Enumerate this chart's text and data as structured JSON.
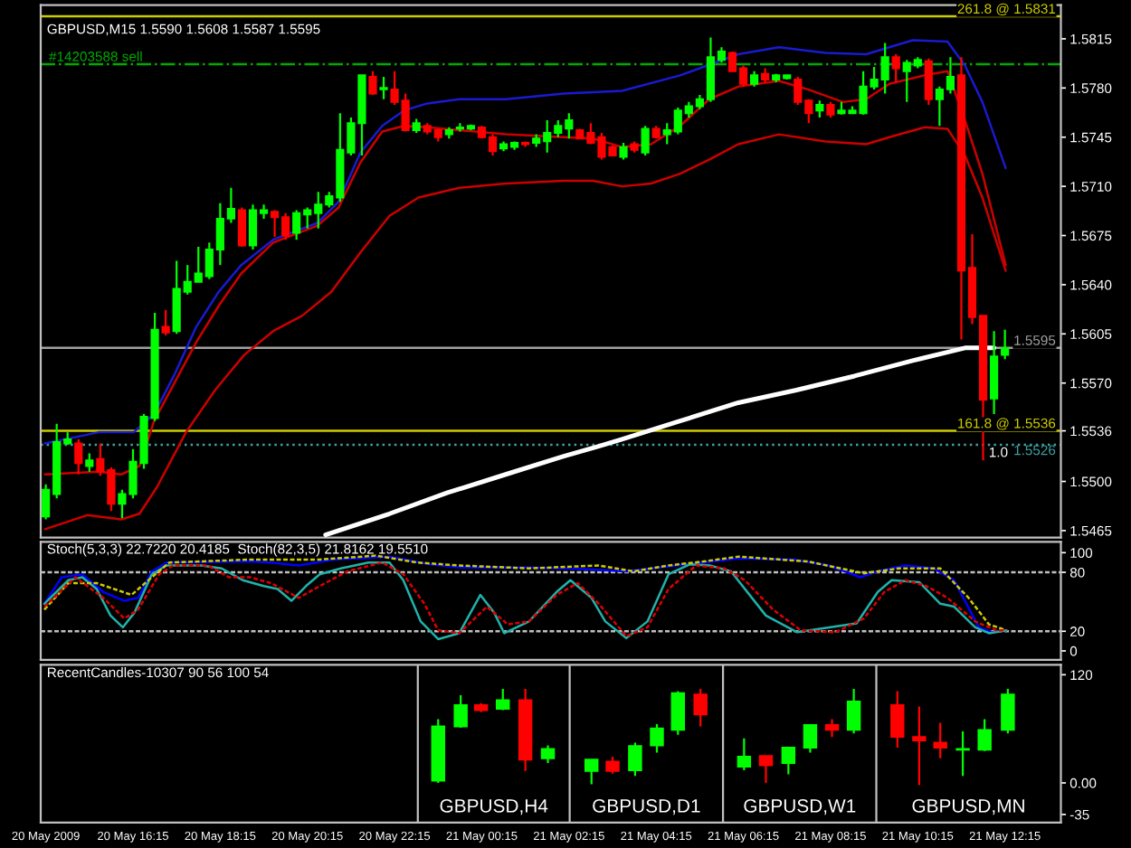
{
  "chart_data": [
    {
      "type": "candlestick",
      "title": "GBPUSD,M15 1.5590 1.5608 1.5587 1.5595",
      "x": [
        "2009-05-20T14:15",
        "2009-05-20T14:30",
        "2009-05-20T14:45",
        "2009-05-20T15:00",
        "2009-05-20T15:15",
        "2009-05-20T15:30",
        "2009-05-20T15:45",
        "2009-05-20T16:00",
        "2009-05-20T16:15",
        "2009-05-20T16:30",
        "2009-05-20T16:45",
        "2009-05-20T17:00",
        "2009-05-20T17:15",
        "2009-05-20T17:30",
        "2009-05-20T17:45",
        "2009-05-20T18:00",
        "2009-05-20T18:15",
        "2009-05-20T18:30",
        "2009-05-20T18:45",
        "2009-05-20T19:00",
        "2009-05-20T19:15",
        "2009-05-20T19:30",
        "2009-05-20T19:45",
        "2009-05-20T20:00",
        "2009-05-20T20:15",
        "2009-05-20T20:30",
        "2009-05-20T20:45",
        "2009-05-20T21:00",
        "2009-05-20T21:15",
        "2009-05-20T21:30",
        "2009-05-20T21:45",
        "2009-05-20T22:00",
        "2009-05-20T22:15",
        "2009-05-20T22:30",
        "2009-05-20T22:45",
        "2009-05-20T23:00",
        "2009-05-20T23:15",
        "2009-05-20T23:30",
        "2009-05-20T23:45",
        "2009-05-21T00:00",
        "2009-05-21T00:15",
        "2009-05-21T00:30",
        "2009-05-21T00:45",
        "2009-05-21T01:00",
        "2009-05-21T01:15",
        "2009-05-21T01:30",
        "2009-05-21T01:45",
        "2009-05-21T02:00",
        "2009-05-21T02:15",
        "2009-05-21T02:30",
        "2009-05-21T02:45",
        "2009-05-21T03:00",
        "2009-05-21T03:15",
        "2009-05-21T03:30",
        "2009-05-21T03:45",
        "2009-05-21T04:00",
        "2009-05-21T04:15",
        "2009-05-21T04:30",
        "2009-05-21T04:45",
        "2009-05-21T05:00",
        "2009-05-21T05:15",
        "2009-05-21T05:30",
        "2009-05-21T05:45",
        "2009-05-21T06:00",
        "2009-05-21T06:15",
        "2009-05-21T06:30",
        "2009-05-21T06:45",
        "2009-05-21T07:00",
        "2009-05-21T07:15",
        "2009-05-21T07:30",
        "2009-05-21T07:45",
        "2009-05-21T08:00",
        "2009-05-21T08:15",
        "2009-05-21T08:30",
        "2009-05-21T08:45",
        "2009-05-21T09:00",
        "2009-05-21T09:15",
        "2009-05-21T09:30",
        "2009-05-21T09:45",
        "2009-05-21T10:00",
        "2009-05-21T10:15",
        "2009-05-21T10:30",
        "2009-05-21T10:45",
        "2009-05-21T11:00",
        "2009-05-21T11:15",
        "2009-05-21T11:30",
        "2009-05-21T11:45",
        "2009-05-21T12:00",
        "2009-05-21T12:15"
      ],
      "ohlc": [
        [
          1.5475,
          1.5498,
          1.5473,
          1.5494
        ],
        [
          1.5491,
          1.5541,
          1.5488,
          1.5528
        ],
        [
          1.5527,
          1.5535,
          1.5526,
          1.553
        ],
        [
          1.5527,
          1.553,
          1.5505,
          1.5513
        ],
        [
          1.5511,
          1.552,
          1.5507,
          1.5515
        ],
        [
          1.5516,
          1.5527,
          1.5504,
          1.5507
        ],
        [
          1.5508,
          1.551,
          1.5479,
          1.5484
        ],
        [
          1.5484,
          1.5494,
          1.5474,
          1.5491
        ],
        [
          1.5491,
          1.5523,
          1.5488,
          1.5514
        ],
        [
          1.5513,
          1.5548,
          1.5509,
          1.5546
        ],
        [
          1.5545,
          1.562,
          1.5543,
          1.5608
        ],
        [
          1.561,
          1.5622,
          1.5604,
          1.5606
        ],
        [
          1.5607,
          1.5657,
          1.5605,
          1.5637
        ],
        [
          1.5635,
          1.5654,
          1.5633,
          1.5642
        ],
        [
          1.5642,
          1.5667,
          1.5642,
          1.5648
        ],
        [
          1.5646,
          1.567,
          1.5644,
          1.5665
        ],
        [
          1.5665,
          1.5698,
          1.5654,
          1.5687
        ],
        [
          1.5687,
          1.5709,
          1.5684,
          1.5694
        ],
        [
          1.5693,
          1.5695,
          1.5667,
          1.5668
        ],
        [
          1.5668,
          1.5697,
          1.5665,
          1.5693
        ],
        [
          1.5691,
          1.5697,
          1.5687,
          1.5693
        ],
        [
          1.5692,
          1.5693,
          1.5674,
          1.5688
        ],
        [
          1.5688,
          1.5691,
          1.5672,
          1.5675
        ],
        [
          1.5677,
          1.5693,
          1.5672,
          1.5691
        ],
        [
          1.569,
          1.5695,
          1.568,
          1.5693
        ],
        [
          1.5691,
          1.5706,
          1.568,
          1.5697
        ],
        [
          1.5697,
          1.5706,
          1.5695,
          1.5703
        ],
        [
          1.5702,
          1.5762,
          1.5699,
          1.5736
        ],
        [
          1.5734,
          1.5759,
          1.5732,
          1.5755
        ],
        [
          1.5755,
          1.5789,
          1.5732,
          1.5789
        ],
        [
          1.5788,
          1.5792,
          1.5775,
          1.5776
        ],
        [
          1.5779,
          1.5788,
          1.5772,
          1.578
        ],
        [
          1.5779,
          1.5792,
          1.5768,
          1.577
        ],
        [
          1.5771,
          1.5776,
          1.5749,
          1.575
        ],
        [
          1.575,
          1.5758,
          1.5748,
          1.5755
        ],
        [
          1.5753,
          1.5755,
          1.5747,
          1.5749
        ],
        [
          1.575,
          1.5751,
          1.5742,
          1.5745
        ],
        [
          1.5747,
          1.5752,
          1.5744,
          1.575
        ],
        [
          1.5751,
          1.5755,
          1.5749,
          1.5752
        ],
        [
          1.5751,
          1.5754,
          1.575,
          1.5753
        ],
        [
          1.5752,
          1.5753,
          1.5744,
          1.5745
        ],
        [
          1.5745,
          1.5747,
          1.5732,
          1.5735
        ],
        [
          1.5737,
          1.5742,
          1.5735,
          1.574
        ],
        [
          1.5738,
          1.5742,
          1.5736,
          1.5741
        ],
        [
          1.5741,
          1.5742,
          1.5738,
          1.574
        ],
        [
          1.5741,
          1.5747,
          1.5738,
          1.5744
        ],
        [
          1.5742,
          1.5757,
          1.5734,
          1.5748
        ],
        [
          1.5748,
          1.5757,
          1.5745,
          1.5753
        ],
        [
          1.5751,
          1.5762,
          1.5744,
          1.5757
        ],
        [
          1.575,
          1.5751,
          1.5744,
          1.5744
        ],
        [
          1.5748,
          1.5755,
          1.574,
          1.5741
        ],
        [
          1.5745,
          1.5748,
          1.5729,
          1.5731
        ],
        [
          1.5738,
          1.5739,
          1.5732,
          1.5732
        ],
        [
          1.5731,
          1.5741,
          1.5729,
          1.5738
        ],
        [
          1.574,
          1.5742,
          1.5734,
          1.5736
        ],
        [
          1.5734,
          1.5753,
          1.5732,
          1.5751
        ],
        [
          1.5751,
          1.5753,
          1.5744,
          1.5745
        ],
        [
          1.5747,
          1.5755,
          1.574,
          1.575
        ],
        [
          1.5749,
          1.5766,
          1.5747,
          1.5764
        ],
        [
          1.5762,
          1.577,
          1.5759,
          1.5767
        ],
        [
          1.5767,
          1.5775,
          1.5765,
          1.5772
        ],
        [
          1.5772,
          1.5816,
          1.577,
          1.5802
        ],
        [
          1.58,
          1.5809,
          1.5798,
          1.5806
        ],
        [
          1.5805,
          1.5806,
          1.5792,
          1.5792
        ],
        [
          1.5794,
          1.5796,
          1.5781,
          1.5783
        ],
        [
          1.5783,
          1.5792,
          1.5781,
          1.5789
        ],
        [
          1.579,
          1.5794,
          1.5784,
          1.5786
        ],
        [
          1.5786,
          1.579,
          1.5784,
          1.5789
        ],
        [
          1.5787,
          1.5789,
          1.5786,
          1.5789
        ],
        [
          1.5786,
          1.5788,
          1.5768,
          1.577
        ],
        [
          1.5771,
          1.5772,
          1.5755,
          1.5762
        ],
        [
          1.5764,
          1.5771,
          1.5759,
          1.5768
        ],
        [
          1.5768,
          1.577,
          1.5759,
          1.5761
        ],
        [
          1.5762,
          1.577,
          1.5761,
          1.5764
        ],
        [
          1.5762,
          1.5767,
          1.5762,
          1.5764
        ],
        [
          1.5762,
          1.5792,
          1.5761,
          1.5781
        ],
        [
          1.5781,
          1.5795,
          1.5779,
          1.5786
        ],
        [
          1.5786,
          1.5812,
          1.5776,
          1.5802
        ],
        [
          1.5802,
          1.5804,
          1.5784,
          1.5794
        ],
        [
          1.5792,
          1.58,
          1.577,
          1.5798
        ],
        [
          1.5796,
          1.5802,
          1.5794,
          1.58
        ],
        [
          1.5799,
          1.5801,
          1.5768,
          1.5772
        ],
        [
          1.5772,
          1.5781,
          1.5753,
          1.5779
        ],
        [
          1.5779,
          1.5802,
          1.5776,
          1.5788
        ],
        [
          1.5789,
          1.5802,
          1.5601,
          1.565
        ],
        [
          1.5652,
          1.5676,
          1.5612,
          1.5617
        ],
        [
          1.5618,
          1.5618,
          1.5515,
          1.5558
        ],
        [
          1.5559,
          1.5607,
          1.5548,
          1.5589
        ],
        [
          1.559,
          1.5608,
          1.5587,
          1.5595
        ]
      ],
      "colors": [
        "#00ff00",
        "#00ff00",
        "#00ff00",
        "#ff0000",
        "#00ff00",
        "#ff0000",
        "#ff0000",
        "#00ff00",
        "#00ff00",
        "#00ff00",
        "#00ff00",
        "#ff0000",
        "#00ff00",
        "#00ff00",
        "#00ff00",
        "#00ff00",
        "#00ff00",
        "#00ff00",
        "#ff0000",
        "#00ff00",
        "#00ff00",
        "#ff0000",
        "#ff0000",
        "#00ff00",
        "#00ff00",
        "#00ff00",
        "#00ff00",
        "#00ff00",
        "#00ff00",
        "#00ff00",
        "#ff0000",
        "#00ff00",
        "#ff0000",
        "#ff0000",
        "#00ff00",
        "#ff0000",
        "#ff0000",
        "#00ff00",
        "#00ff00",
        "#00ff00",
        "#ff0000",
        "#ff0000",
        "#00ff00",
        "#00ff00",
        "#ff0000",
        "#00ff00",
        "#00ff00",
        "#00ff00",
        "#00ff00",
        "#ff0000",
        "#ff0000",
        "#ff0000",
        "#ff0000",
        "#00ff00",
        "#ff0000",
        "#00ff00",
        "#ff0000",
        "#00ff00",
        "#00ff00",
        "#00ff00",
        "#00ff00",
        "#00ff00",
        "#00ff00",
        "#ff0000",
        "#ff0000",
        "#00ff00",
        "#ff0000",
        "#00ff00",
        "#00ff00",
        "#ff0000",
        "#ff0000",
        "#00ff00",
        "#ff0000",
        "#00ff00",
        "#00ff00",
        "#00ff00",
        "#00ff00",
        "#00ff00",
        "#ff0000",
        "#00ff00",
        "#00ff00",
        "#ff0000",
        "#00ff00",
        "#00ff00",
        "#ff0000",
        "#ff0000",
        "#ff0000",
        "#00ff00",
        "#00ff00"
      ],
      "series": [
        {
          "type": "line",
          "color": "#1a1ad0",
          "x": [
            "2009-05-20T14:14",
            "2009-05-20T15:28",
            "2009-05-20T16:16",
            "2009-05-20T16:44",
            "2009-05-20T17:13",
            "2009-05-20T17:42",
            "2009-05-20T18:13",
            "2009-05-20T18:44",
            "2009-05-20T19:28",
            "2009-05-20T19:58",
            "2009-05-20T20:29",
            "2009-05-20T20:58",
            "2009-05-20T21:28",
            "2009-05-20T21:58",
            "2009-05-20T22:28",
            "2009-05-20T23:00",
            "2009-05-20T23:44",
            "2009-05-21T00:48",
            "2009-05-21T02:08",
            "2009-05-21T03:28",
            "2009-05-21T04:48",
            "2009-05-21T06:08",
            "2009-05-21T07:04",
            "2009-05-21T08:08",
            "2009-05-21T09:04",
            "2009-05-21T10:08",
            "2009-05-21T10:56",
            "2009-05-21T11:20",
            "2009-05-21T11:44",
            "2009-05-21T12:16"
          ],
          "values": [
            1.5527,
            1.5535,
            1.5535,
            1.5548,
            1.5577,
            1.561,
            1.5635,
            1.5654,
            1.5672,
            1.5678,
            1.5684,
            1.5699,
            1.5734,
            1.5753,
            1.5764,
            1.5769,
            1.5772,
            1.5772,
            1.5776,
            1.5778,
            1.5789,
            1.5804,
            1.5809,
            1.5805,
            1.5804,
            1.5814,
            1.5813,
            1.5796,
            1.577,
            1.5723
          ]
        },
        {
          "type": "line",
          "color": "#cc0000",
          "x": [
            "2009-05-20T14:14",
            "2009-05-20T15:28",
            "2009-05-20T15:59",
            "2009-05-20T16:24",
            "2009-05-20T16:44",
            "2009-05-20T17:13",
            "2009-05-20T17:42",
            "2009-05-20T18:13",
            "2009-05-20T18:44",
            "2009-05-20T19:28",
            "2009-05-20T19:58",
            "2009-05-20T20:29",
            "2009-05-20T20:58",
            "2009-05-20T21:28",
            "2009-05-20T21:58",
            "2009-05-20T22:28",
            "2009-05-20T23:00",
            "2009-05-20T23:44",
            "2009-05-21T00:48",
            "2009-05-21T02:08",
            "2009-05-21T02:48",
            "2009-05-21T03:28",
            "2009-05-21T04:08",
            "2009-05-21T04:48",
            "2009-05-21T05:28",
            "2009-05-21T06:08",
            "2009-05-21T07:04",
            "2009-05-21T07:44",
            "2009-05-21T08:32",
            "2009-05-21T09:04",
            "2009-05-21T09:36",
            "2009-05-21T10:24",
            "2009-05-21T10:56",
            "2009-05-21T11:20",
            "2009-05-21T11:44",
            "2009-05-21T12:16"
          ],
          "values": [
            1.5505,
            1.5507,
            1.5505,
            1.5511,
            1.5543,
            1.5571,
            1.5599,
            1.5625,
            1.5648,
            1.567,
            1.5676,
            1.5682,
            1.5695,
            1.5727,
            1.5749,
            1.5753,
            1.5752,
            1.575,
            1.5747,
            1.5745,
            1.5744,
            1.5738,
            1.574,
            1.5753,
            1.5772,
            1.5781,
            1.5785,
            1.5779,
            1.577,
            1.5772,
            1.5783,
            1.5789,
            1.5792,
            1.5757,
            1.5719,
            1.5654
          ]
        },
        {
          "type": "line",
          "color": "#cc0000",
          "x": [
            "2009-05-20T14:14",
            "2009-05-20T15:12",
            "2009-05-20T15:59",
            "2009-05-20T16:24",
            "2009-05-20T16:48",
            "2009-05-20T17:28",
            "2009-05-20T18:08",
            "2009-05-20T18:48",
            "2009-05-20T19:28",
            "2009-05-20T20:08",
            "2009-05-20T20:48",
            "2009-05-20T21:28",
            "2009-05-20T22:08",
            "2009-05-20T22:48",
            "2009-05-20T23:44",
            "2009-05-21T00:48",
            "2009-05-21T02:08",
            "2009-05-21T02:48",
            "2009-05-21T03:28",
            "2009-05-21T04:08",
            "2009-05-21T04:48",
            "2009-05-21T05:28",
            "2009-05-21T06:08",
            "2009-05-21T07:04",
            "2009-05-21T08:08",
            "2009-05-21T09:04",
            "2009-05-21T09:36",
            "2009-05-21T10:24",
            "2009-05-21T10:56",
            "2009-05-21T11:20",
            "2009-05-21T11:44",
            "2009-05-21T12:16"
          ],
          "values": [
            1.5466,
            1.5476,
            1.5473,
            1.5477,
            1.5496,
            1.5535,
            1.5565,
            1.559,
            1.5607,
            1.5618,
            1.5635,
            1.5663,
            1.5689,
            1.5702,
            1.5709,
            1.5712,
            1.5714,
            1.5714,
            1.571,
            1.5712,
            1.5719,
            1.5729,
            1.574,
            1.5747,
            1.5742,
            1.574,
            1.5745,
            1.5752,
            1.5751,
            1.5732,
            1.5702,
            1.565
          ]
        },
        {
          "type": "line",
          "color": "#ffffff",
          "x": [
            "2009-05-20T20:40",
            "2009-05-20T22:08",
            "2009-05-20T23:28",
            "2009-05-21T00:48",
            "2009-05-21T02:08",
            "2009-05-21T02:56",
            "2009-05-21T03:28",
            "2009-05-21T04:48",
            "2009-05-21T06:08",
            "2009-05-21T07:28",
            "2009-05-21T08:48",
            "2009-05-21T10:08",
            "2009-05-21T11:20",
            "2009-05-21T12:00"
          ],
          "values": [
            1.5462,
            1.5477,
            1.5492,
            1.5505,
            1.5518,
            1.5525,
            1.553,
            1.5543,
            1.5556,
            1.5565,
            1.5575,
            1.5586,
            1.5595,
            1.5595
          ]
        }
      ],
      "xlim": [
        "2009-05-20T14:08",
        "2009-05-21T13:32"
      ],
      "ylim": [
        1.546,
        1.5839
      ],
      "yticks": [
        1.5465,
        {
          "value": 1.55,
          "label": "1.5500"
        },
        1.5536,
        {
          "value": 1.557,
          "label": "1.5570"
        },
        1.5605,
        {
          "value": 1.564,
          "label": "1.5640"
        },
        1.5675,
        {
          "value": 1.571,
          "label": "1.5710"
        },
        1.5745,
        {
          "value": 1.578,
          "label": "1.5780"
        },
        1.5815
      ],
      "tick_labels": "y",
      "ref_lines": [
        {
          "axis": "y",
          "value": 1.5831,
          "label": "261.8 @ 1.5831",
          "color": "#cccc00",
          "line_style": "solid"
        },
        {
          "axis": "y",
          "value": 1.5797,
          "label": "#14203588 sell",
          "color": "#00aa00",
          "line_style": "dashdot"
        },
        {
          "axis": "y",
          "value": 1.5595,
          "label": "1.5595",
          "color": "#a0a0a0",
          "line_style": "solid"
        },
        {
          "axis": "y",
          "value": 1.5536,
          "label": "161.8 @ 1.5536",
          "color": "#cccc00",
          "line_style": "solid"
        },
        {
          "axis": "y",
          "value": 1.5526,
          "label": "1.5526",
          "color": "#40a0a0",
          "line_style": "dotted"
        }
      ],
      "annotations": [
        {
          "text": "1.0",
          "x": "2009-05-21T12:06",
          "y": 1.552
        }
      ]
    },
    {
      "type": "line",
      "title": "Stoch(5,3,3) 22.7220 20.4185  Stoch(82,3,5) 21.8162 19.5510",
      "series": [
        {
          "type": "line",
          "color": "#20b2aa",
          "line_style": "solid",
          "x": [
            "2009-05-20T14:13",
            "2009-05-20T14:46",
            "2009-05-20T15:05",
            "2009-05-20T15:25",
            "2009-05-20T15:44",
            "2009-05-20T16:01",
            "2009-05-20T16:17",
            "2009-05-20T16:41",
            "2009-05-20T17:01",
            "2009-05-20T17:49",
            "2009-05-20T18:17",
            "2009-05-20T18:46",
            "2009-05-20T19:15",
            "2009-05-20T19:34",
            "2009-05-20T19:53",
            "2009-05-20T20:13",
            "2009-05-20T20:32",
            "2009-05-20T21:01",
            "2009-05-20T21:39",
            "2009-05-20T22:08",
            "2009-05-20T22:27",
            "2009-05-20T22:51",
            "2009-05-20T23:15",
            "2009-05-20T23:44",
            "2009-05-21T00:13",
            "2009-05-21T00:32",
            "2009-05-21T00:46",
            "2009-05-21T01:20",
            "2009-05-21T01:58",
            "2009-05-21T02:17",
            "2009-05-21T02:46",
            "2009-05-21T03:05",
            "2009-05-21T03:34",
            "2009-05-21T04:03",
            "2009-05-21T04:32",
            "2009-05-21T05:01",
            "2009-05-21T05:29",
            "2009-05-21T05:58",
            "2009-05-21T06:46",
            "2009-05-21T07:29",
            "2009-05-21T08:13",
            "2009-05-21T08:51",
            "2009-05-21T09:20",
            "2009-05-21T09:39",
            "2009-05-21T10:17",
            "2009-05-21T10:46",
            "2009-05-21T11:05",
            "2009-05-21T11:34",
            "2009-05-21T11:53",
            "2009-05-21T12:17"
          ],
          "values": [
            48,
            72,
            75,
            63,
            36,
            24,
            39,
            78,
            87,
            87,
            84,
            72,
            66,
            63,
            51,
            66,
            78,
            84,
            90,
            90,
            72,
            30,
            12,
            18,
            57,
            39,
            18,
            30,
            60,
            72,
            54,
            30,
            13,
            30,
            78,
            88,
            87,
            81,
            36,
            19,
            24,
            28,
            60,
            72,
            70,
            48,
            45,
            24,
            18,
            21
          ]
        },
        {
          "type": "line",
          "color": "#dd0000",
          "line_style": "dashed",
          "x": [
            "2009-05-20T14:13",
            "2009-05-20T14:56",
            "2009-05-20T15:34",
            "2009-05-20T16:03",
            "2009-05-20T16:22",
            "2009-05-20T16:51",
            "2009-05-20T17:10",
            "2009-05-20T17:58",
            "2009-05-20T18:27",
            "2009-05-20T18:56",
            "2009-05-20T19:25",
            "2009-05-20T20:03",
            "2009-05-20T20:32",
            "2009-05-20T21:10",
            "2009-05-20T21:58",
            "2009-05-20T22:27",
            "2009-05-20T22:56",
            "2009-05-20T23:15",
            "2009-05-20T23:44",
            "2009-05-21T00:22",
            "2009-05-21T00:51",
            "2009-05-21T01:20",
            "2009-05-21T01:58",
            "2009-05-21T02:27",
            "2009-05-21T02:56",
            "2009-05-21T03:34",
            "2009-05-21T04:03",
            "2009-05-21T04:32",
            "2009-05-21T05:10",
            "2009-05-21T05:49",
            "2009-05-21T06:17",
            "2009-05-21T06:56",
            "2009-05-21T07:34",
            "2009-05-21T08:22",
            "2009-05-21T09:01",
            "2009-05-21T09:29",
            "2009-05-21T09:58",
            "2009-05-21T10:27",
            "2009-05-21T10:56",
            "2009-05-21T11:34",
            "2009-05-21T12:03",
            "2009-05-21T12:17"
          ],
          "values": [
            45,
            75,
            54,
            33,
            42,
            78,
            87,
            87,
            75,
            75,
            69,
            54,
            66,
            81,
            90,
            78,
            48,
            21,
            18,
            45,
            27,
            30,
            57,
            69,
            48,
            15,
            24,
            63,
            87,
            84,
            72,
            42,
            21,
            19,
            33,
            60,
            72,
            66,
            54,
            30,
            21,
            21
          ]
        },
        {
          "type": "line",
          "color": "#0000ff",
          "line_style": "solid",
          "x": [
            "2009-05-20T14:13",
            "2009-05-20T14:37",
            "2009-05-20T15:05",
            "2009-05-20T15:34",
            "2009-05-20T16:03",
            "2009-05-20T16:22",
            "2009-05-20T16:41",
            "2009-05-20T17:01",
            "2009-05-20T18:56",
            "2009-05-20T19:25",
            "2009-05-20T20:03",
            "2009-05-20T20:51",
            "2009-05-20T22:08",
            "2009-05-20T23:05",
            "2009-05-20T23:44",
            "2009-05-21T01:20",
            "2009-05-21T02:17",
            "2009-05-21T03:34",
            "2009-05-21T04:32",
            "2009-05-21T05:20",
            "2009-05-21T06:08",
            "2009-05-21T07:25",
            "2009-05-21T08:13",
            "2009-05-21T08:56",
            "2009-05-21T09:20",
            "2009-05-21T09:58",
            "2009-05-21T10:37",
            "2009-05-21T11:05",
            "2009-05-21T11:39",
            "2009-05-21T11:58",
            "2009-05-21T12:17"
          ],
          "values": [
            48,
            75,
            78,
            60,
            51,
            54,
            81,
            90,
            91,
            90,
            87,
            93,
            96,
            88,
            85,
            85,
            84,
            81,
            86,
            90,
            94,
            93,
            87,
            75,
            81,
            87,
            84,
            72,
            24,
            19,
            21
          ]
        },
        {
          "type": "line",
          "color": "#cccc00",
          "line_style": "dashed",
          "x": [
            "2009-05-20T14:13",
            "2009-05-20T14:46",
            "2009-05-20T15:25",
            "2009-05-20T16:13",
            "2009-05-20T16:41",
            "2009-05-20T17:05",
            "2009-05-20T18:56",
            "2009-05-20T20:32",
            "2009-05-20T21:49",
            "2009-05-20T22:46",
            "2009-05-20T23:44",
            "2009-05-21T01:20",
            "2009-05-21T02:56",
            "2009-05-21T03:44",
            "2009-05-21T04:32",
            "2009-05-21T05:20",
            "2009-05-21T06:08",
            "2009-05-21T07:44",
            "2009-05-21T09:01",
            "2009-05-21T09:49",
            "2009-05-21T10:46",
            "2009-05-21T11:25",
            "2009-05-21T11:53",
            "2009-05-21T12:17"
          ],
          "values": [
            42,
            69,
            69,
            57,
            75,
            90,
            93,
            93,
            97,
            90,
            87,
            84,
            87,
            81,
            87,
            91,
            96,
            91,
            79,
            84,
            84,
            54,
            27,
            21
          ]
        }
      ],
      "xlim": [
        "2009-05-20T14:08",
        "2009-05-21T13:32"
      ],
      "ylim": [
        -9,
        111
      ],
      "yticks": [
        0,
        20,
        80,
        100
      ],
      "tick_labels": "y",
      "ref_lines": [
        {
          "axis": "y",
          "value": 80,
          "color": "#c0c0c0",
          "line_style": "dashed"
        },
        {
          "axis": "y",
          "value": 20,
          "color": "#c0c0c0",
          "line_style": "dashed"
        }
      ]
    },
    {
      "type": "candlestick",
      "title": "RecentCandles-10307 90 56 100 54",
      "x": [
        "2009-05-20T23:15",
        "2009-05-20T23:46",
        "2009-05-21T00:14",
        "2009-05-21T00:44",
        "2009-05-21T01:15",
        "2009-05-21T01:46",
        "2009-05-21T02:46",
        "2009-05-21T03:15",
        "2009-05-21T03:46",
        "2009-05-21T04:16",
        "2009-05-21T04:45",
        "2009-05-21T05:16",
        "2009-05-21T06:16",
        "2009-05-21T06:46",
        "2009-05-21T07:17",
        "2009-05-21T07:47",
        "2009-05-21T08:17",
        "2009-05-21T08:47",
        "2009-05-21T09:47",
        "2009-05-21T10:17",
        "2009-05-21T10:46",
        "2009-05-21T11:17",
        "2009-05-21T11:47",
        "2009-05-21T12:19"
      ],
      "ohlc": [
        [
          2.4,
          70.6,
          0,
          62.7
        ],
        [
          62.7,
          97.2,
          61.2,
          86.2
        ],
        [
          86.2,
          88.6,
          78.4,
          80.8
        ],
        [
          82.3,
          104.3,
          80.8,
          91.7
        ],
        [
          91.7,
          104.3,
          13.3,
          25.9
        ],
        [
          27.4,
          41.6,
          22.0,
          37.6
        ],
        [
          13.3,
          25.9,
          -1.6,
          25.9
        ],
        [
          23.5,
          29.0,
          10.2,
          13.3
        ],
        [
          14.1,
          44.7,
          7.8,
          40.8
        ],
        [
          41.6,
          65.1,
          33.7,
          60.4
        ],
        [
          58.8,
          101.9,
          53.3,
          99.6
        ],
        [
          98.0,
          104.3,
          62.7,
          76.0
        ],
        [
          18.0,
          49.4,
          14.1,
          29.0
        ],
        [
          29.8,
          29.8,
          0,
          19.6
        ],
        [
          22.0,
          39.2,
          9.4,
          39.2
        ],
        [
          39.2,
          64.3,
          33.7,
          64.3
        ],
        [
          64.3,
          70.6,
          51.0,
          58.8
        ],
        [
          58.8,
          104.3,
          54.9,
          90.2
        ],
        [
          86.2,
          101.9,
          39.2,
          51.0
        ],
        [
          51.0,
          84.7,
          -2.4,
          47.0
        ],
        [
          44.7,
          66.6,
          27.4,
          39.2
        ],
        [
          36.8,
          57.2,
          7.8,
          37.6
        ],
        [
          36.8,
          70.6,
          35.3,
          58.8
        ],
        [
          58.8,
          104.3,
          54.9,
          98.0
        ]
      ],
      "colors": [
        "#00ff00",
        "#00ff00",
        "#ff0000",
        "#00ff00",
        "#ff0000",
        "#00ff00",
        "#00ff00",
        "#ff0000",
        "#00ff00",
        "#00ff00",
        "#00ff00",
        "#ff0000",
        "#00ff00",
        "#ff0000",
        "#00ff00",
        "#00ff00",
        "#ff0000",
        "#00ff00",
        "#ff0000",
        "#ff0000",
        "#ff0000",
        "#00ff00",
        "#00ff00",
        "#00ff00"
      ],
      "xlim": [
        "2009-05-20T14:08",
        "2009-05-21T13:32"
      ],
      "xticks": [
        {
          "value": "2009-05-20T14:15",
          "label": "20 May 2009"
        },
        {
          "value": "2009-05-20T16:15",
          "label": "20 May 16:15"
        },
        {
          "value": "2009-05-20T18:15",
          "label": "20 May 18:15"
        },
        {
          "value": "2009-05-20T20:15",
          "label": "20 May 20:15"
        },
        {
          "value": "2009-05-20T22:15",
          "label": "20 May 22:15"
        },
        {
          "value": "2009-05-21T00:15",
          "label": "21 May 00:15"
        },
        {
          "value": "2009-05-21T02:15",
          "label": "21 May 02:15"
        },
        {
          "value": "2009-05-21T04:15",
          "label": "21 May 04:15"
        },
        {
          "value": "2009-05-21T06:15",
          "label": "21 May 06:15"
        },
        {
          "value": "2009-05-21T08:15",
          "label": "21 May 08:15"
        },
        {
          "value": "2009-05-21T10:15",
          "label": "21 May 10:15"
        },
        {
          "value": "2009-05-21T12:15",
          "label": "21 May 12:15"
        }
      ],
      "ylim": [
        -44,
        131
      ],
      "yticks": [
        -35,
        {
          "value": 0,
          "label": "0.00"
        },
        120
      ],
      "ref_lines": [
        {
          "axis": "x",
          "value": "2009-05-20T22:47",
          "color": "#c0c0c0",
          "line_style": "solid"
        },
        {
          "axis": "x",
          "value": "2009-05-21T02:16",
          "color": "#c0c0c0",
          "line_style": "solid"
        },
        {
          "axis": "x",
          "value": "2009-05-21T05:47",
          "color": "#c0c0c0",
          "line_style": "solid"
        },
        {
          "axis": "x",
          "value": "2009-05-21T09:18",
          "color": "#c0c0c0",
          "line_style": "solid"
        }
      ],
      "annotations": [
        "GBPUSD,H4",
        "GBPUSD,D1",
        "GBPUSD,W1",
        "GBPUSD,MN"
      ]
    }
  ]
}
